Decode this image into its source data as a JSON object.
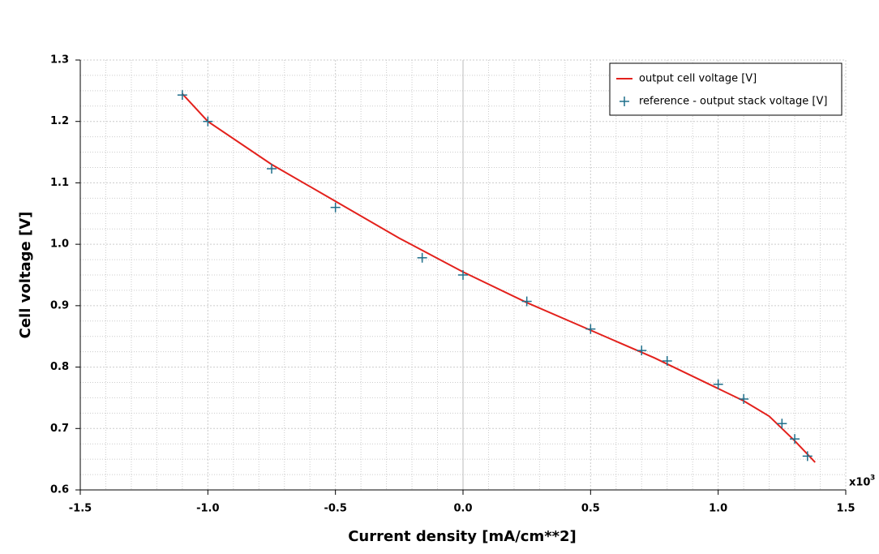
{
  "chart_data": {
    "type": "line",
    "x_label": "Current density [mA/cm**2]",
    "y_label": "Cell voltage [V]",
    "x_multiplier": "x10",
    "x_multiplier_exponent": "3",
    "xlim": [
      -1.5,
      1.5
    ],
    "xticks": [
      -1.5,
      {
        "value": -1.0,
        "label": "-1.0"
      },
      -0.5,
      {
        "value": 0,
        "label": "0.0"
      },
      0.5,
      {
        "value": 1.0,
        "label": "1.0"
      },
      1.5
    ],
    "ylim": [
      0.6,
      1.3
    ],
    "yticks": [
      0.6,
      0.7,
      0.8,
      0.9,
      {
        "value": 1.0,
        "label": "1.0"
      },
      1.1,
      1.2,
      1.3
    ],
    "grid": true,
    "minor_grid": true,
    "legend_position": "upper-right",
    "series": [
      {
        "name": "output cell voltage [V]",
        "type": "line",
        "color": "#e3211c",
        "x": [
          -1.1,
          -1.0,
          -0.75,
          -0.5,
          -0.25,
          0,
          0.25,
          0.5,
          0.75,
          1.0,
          1.1,
          1.2,
          1.3,
          1.38
        ],
        "values": [
          1.245,
          1.2,
          1.13,
          1.07,
          1.01,
          0.955,
          0.905,
          0.86,
          0.815,
          0.765,
          0.745,
          0.72,
          0.68,
          0.645
        ]
      },
      {
        "name": "reference - output stack voltage [V]",
        "type": "scatter",
        "color": "#1f6f8b",
        "x": [
          -1.1,
          -1.0,
          -0.75,
          -0.5,
          -0.16,
          0,
          0.25,
          0.5,
          0.7,
          0.8,
          1.0,
          1.1,
          1.25,
          1.3,
          1.35
        ],
        "values": [
          1.243,
          1.2,
          1.123,
          1.06,
          0.978,
          0.95,
          0.907,
          0.862,
          0.827,
          0.81,
          0.772,
          0.748,
          0.708,
          0.683,
          0.655
        ]
      }
    ]
  }
}
